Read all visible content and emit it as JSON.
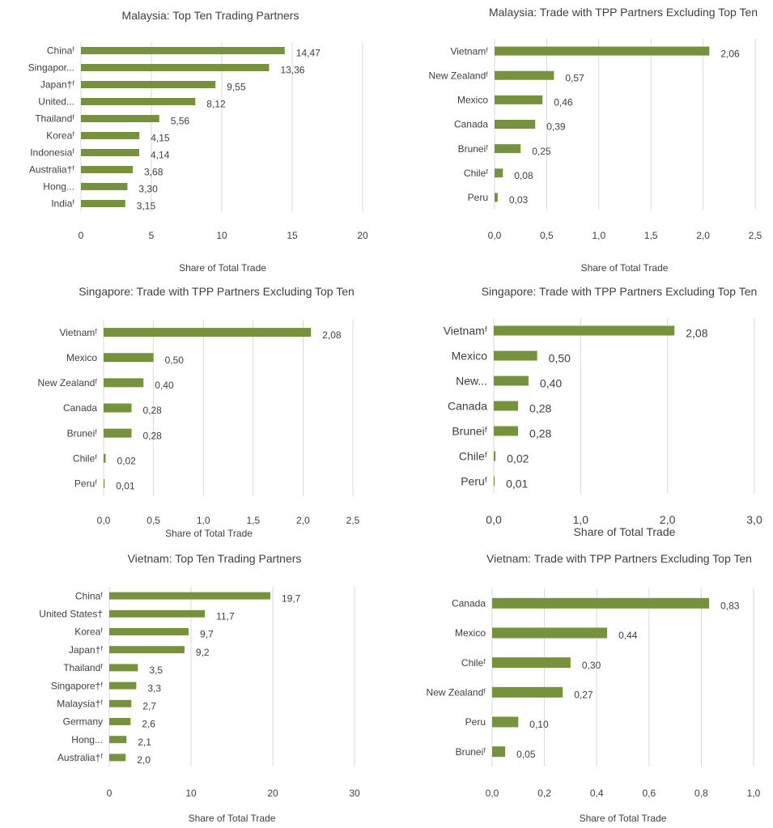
{
  "chart_data": [
    {
      "type": "bar",
      "orientation": "horizontal",
      "title": "Malaysia: Top Ten Trading Partners",
      "xlabel": "Share of Total Trade",
      "xlim": [
        0,
        20
      ],
      "xticks": [
        "0",
        "5",
        "10",
        "15",
        "20"
      ],
      "categories": [
        "Chinaᶠ",
        "Singapor...",
        "Japan†ᶠ",
        "United...",
        "Thailandᶠ",
        "Koreaᶠ",
        "Indonesiaᶠ",
        "Australia†ᶠ",
        "Hong...",
        "Indiaᶠ"
      ],
      "values": [
        14.47,
        13.36,
        9.55,
        8.12,
        5.56,
        4.15,
        4.14,
        3.68,
        3.3,
        3.15
      ],
      "value_labels": [
        "14,47",
        "13,36",
        "9,55",
        "8,12",
        "5,56",
        "4,15",
        "4,14",
        "3,68",
        "3,30",
        "3,15"
      ],
      "grid": true,
      "bar_color": "#76923c"
    },
    {
      "type": "bar",
      "orientation": "horizontal",
      "title": "Malaysia: Trade with TPP Partners Excluding Top Ten",
      "xlabel": "Share of Total Trade",
      "xlim": [
        0,
        2.5
      ],
      "xticks": [
        "0,0",
        "0,5",
        "1,0",
        "1,5",
        "2,0",
        "2,5"
      ],
      "categories": [
        "Vietnamᶠ",
        "New Zealandᶠ",
        "Mexico",
        "Canada",
        "Bruneiᶠ",
        "Chileᶠ",
        "Peru"
      ],
      "values": [
        2.06,
        0.57,
        0.46,
        0.39,
        0.25,
        0.08,
        0.03
      ],
      "value_labels": [
        "2,06",
        "0,57",
        "0,46",
        "0,39",
        "0,25",
        "0,08",
        "0,03"
      ],
      "grid": true,
      "bar_color": "#76923c"
    },
    {
      "type": "bar",
      "orientation": "horizontal",
      "title": "Singapore: Trade with TPP Partners Excluding Top Ten",
      "xlabel": "Share of Total Trade",
      "xlim": [
        0,
        2.5
      ],
      "xticks": [
        "0,0",
        "0,5",
        "1,0",
        "1,5",
        "2,0",
        "2,5"
      ],
      "categories": [
        "Vietnamᶠ",
        "Mexico",
        "New Zealandᶠ",
        "Canada",
        "Bruneiᶠ",
        "Chileᶠ",
        "Peruᶠ"
      ],
      "values": [
        2.08,
        0.5,
        0.4,
        0.28,
        0.28,
        0.02,
        0.01
      ],
      "value_labels": [
        "2,08",
        "0,50",
        "0,40",
        "0,28",
        "0,28",
        "0,02",
        "0,01"
      ],
      "grid": true,
      "bar_color": "#76923c"
    },
    {
      "type": "bar",
      "orientation": "horizontal",
      "title": "Singapore: Trade with TPP Partners Excluding Top Ten",
      "xlabel": "Share of Total Trade",
      "xlim": [
        0,
        3.0
      ],
      "xticks": [
        "0,0",
        "1,0",
        "2,0",
        "3,0"
      ],
      "categories": [
        "Vietnamᶠ",
        "Mexico",
        "New...",
        "Canada",
        "Bruneiᶠ",
        "Chileᶠ",
        "Peruᶠ"
      ],
      "values": [
        2.08,
        0.5,
        0.4,
        0.28,
        0.28,
        0.02,
        0.01
      ],
      "value_labels": [
        "2,08",
        "0,50",
        "0,40",
        "0,28",
        "0,28",
        "0,02",
        "0,01"
      ],
      "grid": true,
      "bar_color": "#76923c"
    },
    {
      "type": "bar",
      "orientation": "horizontal",
      "title": "Vietnam: Top Ten Trading Partners",
      "xlabel": "Share of Total Trade",
      "xlim": [
        0,
        30
      ],
      "xticks": [
        "0",
        "10",
        "20",
        "30"
      ],
      "categories": [
        "Chinaᶠ",
        "United States†",
        "Koreaᶠ",
        "Japan†ᶠ",
        "Thailandᶠ",
        "Singapore†ᶠ",
        "Malaysia†ᶠ",
        "Germany",
        "Hong...",
        "Australia†ᶠ"
      ],
      "values": [
        19.7,
        11.7,
        9.7,
        9.2,
        3.5,
        3.3,
        2.7,
        2.6,
        2.1,
        2.0
      ],
      "value_labels": [
        "19,7",
        "11,7",
        "9,7",
        "9,2",
        "3,5",
        "3,3",
        "2,7",
        "2,6",
        "2,1",
        "2,0"
      ],
      "grid": true,
      "bar_color": "#76923c"
    },
    {
      "type": "bar",
      "orientation": "horizontal",
      "title": "Vietnam: Trade with TPP Partners Excluding Top Ten",
      "xlabel": "Share of Total Trade",
      "xlim": [
        0,
        1.0
      ],
      "xticks": [
        "0,0",
        "0,2",
        "0,4",
        "0,6",
        "0,8",
        "1,0"
      ],
      "categories": [
        "Canada",
        "Mexico",
        "Chileᶠ",
        "New Zealandᶠ",
        "Peru",
        "Bruneiᶠ"
      ],
      "values": [
        0.83,
        0.44,
        0.3,
        0.27,
        0.1,
        0.05
      ],
      "value_labels": [
        "0,83",
        "0,44",
        "0,30",
        "0,27",
        "0,10",
        "0,05"
      ],
      "grid": true,
      "bar_color": "#76923c"
    }
  ]
}
